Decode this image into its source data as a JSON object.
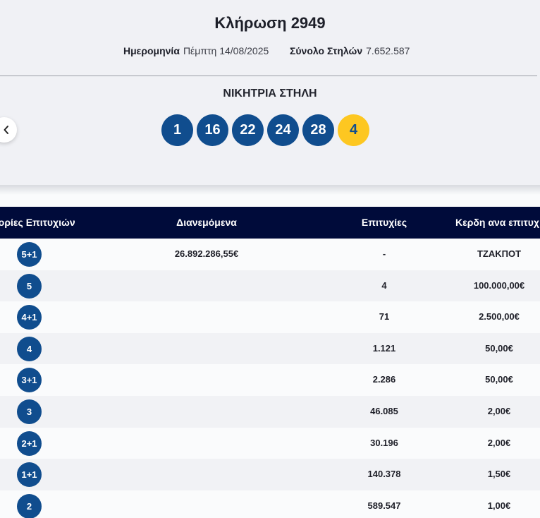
{
  "draw": {
    "title": "Κλήρωση 2949",
    "date_label": "Ημερομηνία",
    "date_value": "Πέμπτη 14/08/2025",
    "columns_label": "Σύνολο Στηλών",
    "columns_value": "7.652.587",
    "winning_label": "ΝΙΚΗΤΡΙΑ ΣΤΗΛΗ",
    "numbers": [
      "1",
      "16",
      "22",
      "24",
      "28"
    ],
    "joker": "4"
  },
  "colors": {
    "ball": "#104d8e",
    "joker_ball": "#fdc721",
    "header_bg": "#000b3a"
  },
  "table": {
    "headers": [
      "γορίες Επιτυχιών",
      "Διανεμόμενα",
      "Επιτυχίες",
      "Κερδη ανα επιτυχ"
    ],
    "rows": [
      {
        "category": "5+1",
        "distributed": "26.892.286,55€",
        "winners": "-",
        "prize": "ΤΖΑΚΠΟΤ"
      },
      {
        "category": "5",
        "distributed": "",
        "winners": "4",
        "prize": "100.000,00€"
      },
      {
        "category": "4+1",
        "distributed": "",
        "winners": "71",
        "prize": "2.500,00€"
      },
      {
        "category": "4",
        "distributed": "",
        "winners": "1.121",
        "prize": "50,00€"
      },
      {
        "category": "3+1",
        "distributed": "",
        "winners": "2.286",
        "prize": "50,00€"
      },
      {
        "category": "3",
        "distributed": "",
        "winners": "46.085",
        "prize": "2,00€"
      },
      {
        "category": "2+1",
        "distributed": "",
        "winners": "30.196",
        "prize": "2,00€"
      },
      {
        "category": "1+1",
        "distributed": "",
        "winners": "140.378",
        "prize": "1,50€"
      },
      {
        "category": "2",
        "distributed": "",
        "winners": "589.547",
        "prize": "1,00€"
      }
    ]
  },
  "icons": {
    "prev": "chevron-left-icon"
  }
}
